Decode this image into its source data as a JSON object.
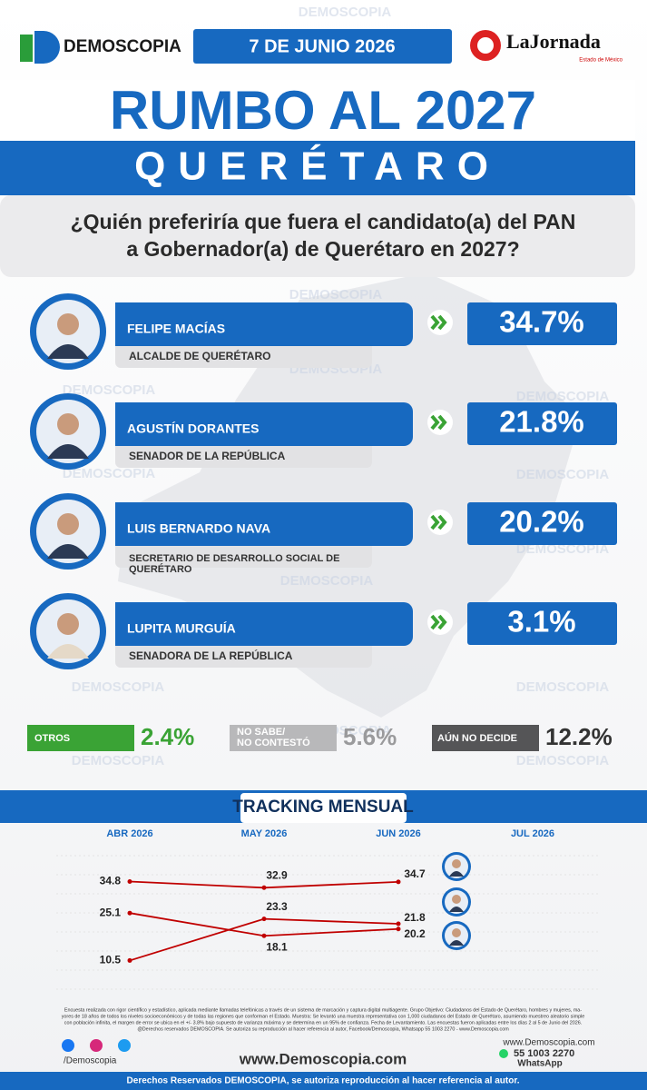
{
  "header": {
    "brand": "DEMOSCOPIA",
    "date": "7 DE JUNIO 2026",
    "partner": "LaJornada",
    "partner_sub": "Estado de México"
  },
  "watermark": "DEMOSCOPIA",
  "title": "RUMBO AL 2027",
  "state": "QUERÉTARO",
  "question": [
    "¿Quién preferiría que fuera el candidato(a) del PAN",
    "a Gobernador(a) de Querétaro en 2027?"
  ],
  "candidates": [
    {
      "name": "FELIPE MACÍAS",
      "role": [
        "ALCALDE DE QUERÉTARO"
      ],
      "share": "34.7%"
    },
    {
      "name": "AGUSTÍN DORANTES",
      "role": [
        "SENADOR DE LA REPÚBLICA"
      ],
      "share": "21.8%"
    },
    {
      "name": "LUIS BERNARDO NAVA",
      "role": [
        "SECRETARIO DE DESARROLLO SOCIAL DE",
        "QUERÉTARO"
      ],
      "share": "20.2%"
    },
    {
      "name": "LUPITA MURGUÍA",
      "role": [
        "SENADORA DE LA REPÚBLICA"
      ],
      "share": "3.1%"
    }
  ],
  "others": [
    {
      "label": [
        "OTROS"
      ],
      "share": "2.4%"
    },
    {
      "label": [
        "NO SABE/",
        "NO CONTESTÓ"
      ],
      "share": "5.6%"
    },
    {
      "label": [
        "AÚN NO DECIDE"
      ],
      "share": "12.2%"
    }
  ],
  "chart_data": {
    "type": "line",
    "title": "TRACKING MENSUAL",
    "categories": [
      "ABR 2026",
      "MAY 2026",
      "JUN 2026",
      "JUL 2026"
    ],
    "series": [
      {
        "color": "#c00000",
        "values": [
          34.8,
          32.9,
          34.7,
          null
        ]
      },
      {
        "color": "#c00000",
        "values": [
          10.5,
          23.3,
          21.8,
          null
        ]
      },
      {
        "color": "#c00000",
        "values": [
          25.1,
          18.1,
          20.2,
          null
        ]
      }
    ],
    "ylim": [
      0,
      45
    ]
  },
  "footer": {
    "fine_print": [
      "Encuesta realizada con rigor científico y estadístico, aplicada mediante llamadas telefónicas a través de un sistema de marcación y captura digital multiagente. Grupo Objetivo: Ciudadanos del Estado de Querétaro, hombres y mujeres, ma-",
      "yores de 18 años de todos los niveles socioeconómicos y de todas las regiones que conforman el Estado. Muestra: Se levantó una muestra representativa con 1,000 ciudadanos del Estado de Querétaro, asumiendo muestreo aleatorio simple",
      "con población infinita, el margen de error se ubica en el +/- 3.8% bajo supuesto de varianza máxima y se determina en un 95% de confianza. Fecha de Levantamiento. Las encuestas fueron aplicadas entre los días 2 al 5 de Junio del 2026.",
      "@Derechos reservados DEMOSCOPIA. Se autoriza su reproducción al hacer referencia al autor, Facebook/Demoscopia, Whatsapp 55 1003 2270 - www.Demoscopia.com"
    ],
    "social": "/Demoscopia",
    "website": "www.Demoscopia.com",
    "website_small": "www.Demoscopia.com",
    "phone": "55 1003 2270",
    "whatsapp": "WhatsApp",
    "rights": "Derechos Reservados DEMOSCOPIA, se autoriza reproducción al hacer referencia al autor."
  }
}
